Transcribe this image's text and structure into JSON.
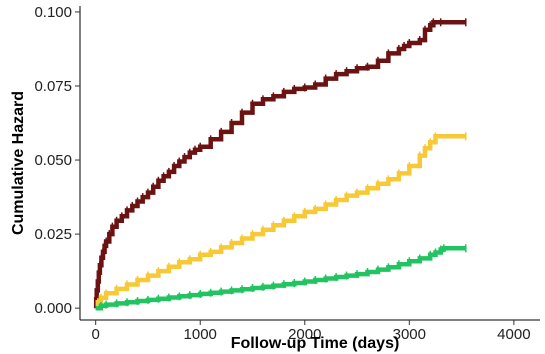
{
  "chart_data": {
    "type": "line",
    "title": "",
    "xlabel": "Follow-up Time (days)",
    "ylabel": "Cumulative Hazard",
    "xlim": [
      -150,
      4250
    ],
    "ylim": [
      -0.004,
      0.102
    ],
    "x_ticks": [
      0,
      1000,
      2000,
      3000,
      4000
    ],
    "y_ticks": [
      0.0,
      0.025,
      0.05,
      0.075,
      0.1
    ],
    "x_tick_labels": [
      "0",
      "1000",
      "2000",
      "3000",
      "4000"
    ],
    "y_tick_labels": [
      "0.000",
      "0.025",
      "0.050",
      "0.075",
      "0.100"
    ],
    "grid": false,
    "legend": "none",
    "series": [
      {
        "color": "#6b1313",
        "step": true,
        "points": [
          [
            0,
            0.0
          ],
          [
            5,
            0.003
          ],
          [
            10,
            0.006
          ],
          [
            20,
            0.009
          ],
          [
            30,
            0.012
          ],
          [
            40,
            0.0145
          ],
          [
            55,
            0.017
          ],
          [
            70,
            0.019
          ],
          [
            85,
            0.021
          ],
          [
            100,
            0.0225
          ],
          [
            130,
            0.025
          ],
          [
            160,
            0.0275
          ],
          [
            200,
            0.0295
          ],
          [
            250,
            0.031
          ],
          [
            300,
            0.033
          ],
          [
            350,
            0.0345
          ],
          [
            400,
            0.036
          ],
          [
            450,
            0.0375
          ],
          [
            500,
            0.039
          ],
          [
            550,
            0.041
          ],
          [
            600,
            0.043
          ],
          [
            650,
            0.0445
          ],
          [
            700,
            0.046
          ],
          [
            750,
            0.048
          ],
          [
            800,
            0.0495
          ],
          [
            850,
            0.051
          ],
          [
            900,
            0.0525
          ],
          [
            950,
            0.0535
          ],
          [
            1000,
            0.0545
          ],
          [
            1100,
            0.057
          ],
          [
            1200,
            0.0595
          ],
          [
            1300,
            0.0625
          ],
          [
            1400,
            0.066
          ],
          [
            1500,
            0.069
          ],
          [
            1600,
            0.0705
          ],
          [
            1700,
            0.0715
          ],
          [
            1800,
            0.073
          ],
          [
            1900,
            0.074
          ],
          [
            2000,
            0.0745
          ],
          [
            2100,
            0.0755
          ],
          [
            2200,
            0.0775
          ],
          [
            2300,
            0.079
          ],
          [
            2400,
            0.08
          ],
          [
            2500,
            0.081
          ],
          [
            2600,
            0.0815
          ],
          [
            2700,
            0.0835
          ],
          [
            2800,
            0.086
          ],
          [
            2900,
            0.0875
          ],
          [
            2950,
            0.0885
          ],
          [
            3000,
            0.0895
          ],
          [
            3100,
            0.0905
          ],
          [
            3150,
            0.094
          ],
          [
            3200,
            0.0955
          ],
          [
            3230,
            0.0965
          ],
          [
            3300,
            0.0965
          ],
          [
            3540,
            0.0965
          ]
        ]
      },
      {
        "color": "#f7c936",
        "step": true,
        "points": [
          [
            0,
            0.0
          ],
          [
            20,
            0.002
          ],
          [
            50,
            0.0035
          ],
          [
            100,
            0.005
          ],
          [
            200,
            0.0065
          ],
          [
            300,
            0.008
          ],
          [
            400,
            0.0095
          ],
          [
            500,
            0.011
          ],
          [
            600,
            0.0125
          ],
          [
            700,
            0.014
          ],
          [
            800,
            0.0155
          ],
          [
            900,
            0.0165
          ],
          [
            1000,
            0.018
          ],
          [
            1100,
            0.019
          ],
          [
            1200,
            0.0205
          ],
          [
            1300,
            0.022
          ],
          [
            1400,
            0.0235
          ],
          [
            1500,
            0.025
          ],
          [
            1600,
            0.0265
          ],
          [
            1700,
            0.028
          ],
          [
            1800,
            0.0295
          ],
          [
            1900,
            0.031
          ],
          [
            2000,
            0.0325
          ],
          [
            2100,
            0.0335
          ],
          [
            2200,
            0.035
          ],
          [
            2300,
            0.0365
          ],
          [
            2400,
            0.038
          ],
          [
            2500,
            0.039
          ],
          [
            2600,
            0.0405
          ],
          [
            2700,
            0.042
          ],
          [
            2800,
            0.0435
          ],
          [
            2900,
            0.0455
          ],
          [
            3000,
            0.048
          ],
          [
            3100,
            0.0515
          ],
          [
            3150,
            0.054
          ],
          [
            3200,
            0.056
          ],
          [
            3250,
            0.058
          ],
          [
            3540,
            0.058
          ]
        ]
      },
      {
        "color": "#22c462",
        "step": true,
        "points": [
          [
            0,
            0.0
          ],
          [
            50,
            0.0008
          ],
          [
            100,
            0.0012
          ],
          [
            200,
            0.0016
          ],
          [
            300,
            0.002
          ],
          [
            400,
            0.0024
          ],
          [
            500,
            0.0028
          ],
          [
            600,
            0.0032
          ],
          [
            700,
            0.0036
          ],
          [
            800,
            0.004
          ],
          [
            900,
            0.0044
          ],
          [
            1000,
            0.0048
          ],
          [
            1100,
            0.0052
          ],
          [
            1200,
            0.0056
          ],
          [
            1300,
            0.006
          ],
          [
            1400,
            0.0064
          ],
          [
            1500,
            0.0068
          ],
          [
            1600,
            0.0072
          ],
          [
            1700,
            0.0076
          ],
          [
            1800,
            0.0081
          ],
          [
            1900,
            0.0085
          ],
          [
            2000,
            0.009
          ],
          [
            2100,
            0.0095
          ],
          [
            2200,
            0.01
          ],
          [
            2300,
            0.0105
          ],
          [
            2400,
            0.011
          ],
          [
            2500,
            0.0115
          ],
          [
            2600,
            0.0122
          ],
          [
            2700,
            0.013
          ],
          [
            2800,
            0.0138
          ],
          [
            2900,
            0.0148
          ],
          [
            3000,
            0.0158
          ],
          [
            3100,
            0.0168
          ],
          [
            3200,
            0.018
          ],
          [
            3250,
            0.0188
          ],
          [
            3300,
            0.0198
          ],
          [
            3330,
            0.0202
          ],
          [
            3540,
            0.0202
          ]
        ]
      }
    ]
  }
}
